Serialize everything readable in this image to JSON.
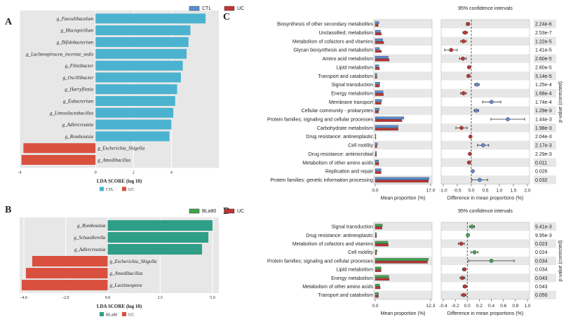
{
  "colors": {
    "ctl": "#4bb3cf",
    "uc": "#d9503f",
    "bla": "#2e9e86",
    "eCtl": "#5b8fd6",
    "eUc": "#c03434",
    "eBla": "#3fa64a",
    "panel": "#e7e7e7"
  },
  "chart_data": [
    {
      "panel": "A",
      "type": "bar",
      "orientation": "horizontal",
      "xlabel": "LDA SCORE (log 10)",
      "xlim": [
        -4,
        6.5
      ],
      "ticks": [
        {
          "v": -4,
          "t": "-4"
        },
        {
          "v": 0,
          "t": "0"
        },
        {
          "v": 2,
          "t": "2"
        },
        {
          "v": 4,
          "t": "4"
        }
      ],
      "legend": [
        {
          "name": "CTL",
          "color": "#4bb3cf"
        },
        {
          "name": "UC",
          "color": "#d9503f"
        }
      ],
      "bars": [
        {
          "label": "g_Faecalibaculum",
          "value": 5.8,
          "group": "CTL"
        },
        {
          "label": "g_Mucispirillum",
          "value": 5.0,
          "group": "CTL"
        },
        {
          "label": "g_Bifidobacterium",
          "value": 4.9,
          "group": "CTL"
        },
        {
          "label": "g_Lachnospiracea_incertae_sedis",
          "value": 4.8,
          "group": "CTL"
        },
        {
          "label": "g_Flintibacter",
          "value": 4.6,
          "group": "CTL"
        },
        {
          "label": "g_Oscillibacter",
          "value": 4.5,
          "group": "CTL"
        },
        {
          "label": "g_Harryflintia",
          "value": 4.3,
          "group": "CTL"
        },
        {
          "label": "g_Eubacterium",
          "value": 4.2,
          "group": "CTL"
        },
        {
          "label": "g_Limosilactobacillus",
          "value": 4.1,
          "group": "CTL"
        },
        {
          "label": "g_Adlercreutzia",
          "value": 4.0,
          "group": "CTL"
        },
        {
          "label": "g_Romboutsia",
          "value": 3.9,
          "group": "CTL"
        },
        {
          "label": "g_Escherichia_Shigella",
          "value": -3.8,
          "group": "UC"
        },
        {
          "label": "g_Amedibacillus",
          "value": -3.9,
          "group": "UC"
        }
      ]
    },
    {
      "panel": "B",
      "type": "bar",
      "orientation": "horizontal",
      "xlabel": "LDA SCORE (log 10)",
      "xlim": [
        -4.2,
        5.3
      ],
      "ticks": [
        {
          "v": -4,
          "t": "-4.0"
        },
        {
          "v": -2,
          "t": "-2.0"
        },
        {
          "v": 0,
          "t": "0.0"
        },
        {
          "v": 2.5,
          "t": "2.5"
        },
        {
          "v": 5,
          "t": "5.0"
        }
      ],
      "legend": [
        {
          "name": "BLa80",
          "color": "#2e9e86"
        },
        {
          "name": "UC",
          "color": "#d9503f"
        }
      ],
      "bars": [
        {
          "label": "g_Romboutsia",
          "value": 5.0,
          "group": "BLa80"
        },
        {
          "label": "g_Schaedlerella",
          "value": 4.8,
          "group": "BLa80"
        },
        {
          "label": "g_Adlercreutzia",
          "value": 4.5,
          "group": "BLa80"
        },
        {
          "label": "g_Escherichia_Shigella",
          "value": -3.6,
          "group": "UC"
        },
        {
          "label": "g_Amedibacillus",
          "value": -3.9,
          "group": "UC"
        },
        {
          "label": "g_Lactimospora",
          "value": -4.1,
          "group": "UC"
        }
      ]
    },
    {
      "panel": "C",
      "type": "extended_error_bar",
      "groups": [
        {
          "name": "CTL",
          "color": "#5b8fd6"
        },
        {
          "name": "UC",
          "color": "#c03434"
        }
      ],
      "prop_axis": {
        "label": "Mean proportion (%)",
        "max": 17,
        "ticks": [
          {
            "v": 0,
            "t": "0.0"
          },
          {
            "v": 17,
            "t": "17.0"
          }
        ]
      },
      "diff_axis": {
        "label": "Difference in mean proportions (%)",
        "min": -1.0,
        "max": 2.0,
        "ticks": [
          {
            "v": -1.0,
            "t": "-1.0"
          },
          {
            "v": -0.5,
            "t": "-0.5"
          },
          {
            "v": 0.0,
            "t": "0.0"
          },
          {
            "v": 0.5,
            "t": "0.5"
          },
          {
            "v": 1.0,
            "t": "1.0"
          },
          {
            "v": 1.5,
            "t": "1.5"
          },
          {
            "v": 2.0,
            "t": "2.0"
          }
        ]
      },
      "ci_title": "95% confidence intervals",
      "pvalue_label": "p-value (corrected)",
      "rows": [
        {
          "label": "Biosynthesis of other secondary metabolites",
          "a": 1.1,
          "b": 0.9,
          "diff": -0.12,
          "lo": -0.18,
          "hi": -0.06,
          "p": "2.24e-6"
        },
        {
          "label": "Unclassified; metabolism",
          "a": 1.6,
          "b": 1.9,
          "diff": -0.22,
          "lo": -0.3,
          "hi": -0.14,
          "p": "2.53e-7"
        },
        {
          "label": "Metabolism of cofactors and vitamins",
          "a": 2.3,
          "b": 2.6,
          "diff": -0.28,
          "lo": -0.38,
          "hi": -0.18,
          "p": "1.22e-5"
        },
        {
          "label": "Glycan biosynthesis and metabolism",
          "a": 1.3,
          "b": 1.9,
          "diff": -0.72,
          "lo": -0.95,
          "hi": -0.5,
          "p": "1.41e-5"
        },
        {
          "label": "Amino acid metabolism",
          "a": 4.0,
          "b": 4.3,
          "diff": -0.3,
          "lo": -0.42,
          "hi": -0.18,
          "p": "2.60e-5"
        },
        {
          "label": "Lipid metabolism",
          "a": 1.1,
          "b": 1.3,
          "diff": -0.08,
          "lo": -0.12,
          "hi": -0.04,
          "p": "2.80e-5"
        },
        {
          "label": "Transport and catabolism",
          "a": 0.5,
          "b": 0.5,
          "diff": -0.1,
          "lo": -0.15,
          "hi": -0.05,
          "p": "3.14e-5"
        },
        {
          "label": "Signal transduction",
          "a": 1.4,
          "b": 1.3,
          "diff": 0.2,
          "lo": 0.12,
          "hi": 0.28,
          "p": "1.25e-4"
        },
        {
          "label": "Energy metabolism",
          "a": 2.4,
          "b": 2.5,
          "diff": -0.28,
          "lo": -0.38,
          "hi": -0.18,
          "p": "1.68e-4"
        },
        {
          "label": "Membrane transport",
          "a": 2.0,
          "b": 1.8,
          "diff": 0.72,
          "lo": 0.4,
          "hi": 1.05,
          "p": "1.74e-4"
        },
        {
          "label": "Cellular community - prokaryotes",
          "a": 1.2,
          "b": 1.0,
          "diff": 0.18,
          "lo": 0.1,
          "hi": 0.26,
          "p": "1.29e-3"
        },
        {
          "label": "Protein families; signaling and cellular processes",
          "a": 8.8,
          "b": 8.2,
          "diff": 1.3,
          "lo": 0.7,
          "hi": 1.9,
          "p": "1.44e-3"
        },
        {
          "label": "Carbohydrate metabolism",
          "a": 7.0,
          "b": 7.0,
          "diff": -0.35,
          "lo": -0.55,
          "hi": -0.15,
          "p": "1.98e-3"
        },
        {
          "label": "Drug resistance: antineoplastic",
          "a": 0.2,
          "b": 0.2,
          "diff": -0.03,
          "lo": -0.05,
          "hi": -0.01,
          "p": "2.04e-3"
        },
        {
          "label": "Cell motility",
          "a": 0.7,
          "b": 0.5,
          "diff": 0.42,
          "lo": 0.22,
          "hi": 0.62,
          "p": "2.17e-3"
        },
        {
          "label": "Drug resistance: antimicrobial",
          "a": 0.4,
          "b": 0.4,
          "diff": -0.05,
          "lo": -0.08,
          "hi": -0.02,
          "p": "2.29e-3"
        },
        {
          "label": "Metabolism of other amino acids",
          "a": 1.0,
          "b": 1.1,
          "diff": -0.08,
          "lo": -0.12,
          "hi": -0.04,
          "p": "0.011"
        },
        {
          "label": "Replication and repair",
          "a": 1.8,
          "b": 1.8,
          "diff": 0.05,
          "lo": 0.01,
          "hi": 0.09,
          "p": "0.026"
        },
        {
          "label": "Protein families: genetic information processing",
          "a": 16.5,
          "b": 16.3,
          "diff": 0.3,
          "lo": 0.02,
          "hi": 0.58,
          "p": "0.032"
        }
      ]
    },
    {
      "panel": "D",
      "type": "extended_error_bar",
      "groups": [
        {
          "name": "BLa80",
          "color": "#3fa64a"
        },
        {
          "name": "UC",
          "color": "#c03434"
        }
      ],
      "prop_axis": {
        "label": "Mean proportion (%)",
        "max": 12.3,
        "ticks": [
          {
            "v": 0,
            "t": "0.0"
          },
          {
            "v": 12.3,
            "t": "12.3"
          }
        ]
      },
      "diff_axis": {
        "label": "Difference in mean proportions (%)",
        "min": -0.4,
        "max": 1.0,
        "ticks": [
          {
            "v": -0.4,
            "t": "-0.4"
          },
          {
            "v": -0.2,
            "t": "-0.2"
          },
          {
            "v": 0.0,
            "t": "0.0"
          },
          {
            "v": 0.2,
            "t": "0.2"
          },
          {
            "v": 0.4,
            "t": "0.4"
          },
          {
            "v": 0.6,
            "t": "0.6"
          },
          {
            "v": 0.8,
            "t": "0.8"
          },
          {
            "v": 1.0,
            "t": "1.0"
          }
        ]
      },
      "ci_title": "95% confidence intervals",
      "pvalue_label": "p-value (corrected)",
      "rows": [
        {
          "label": "Signal transduction",
          "a": 1.6,
          "b": 1.5,
          "diff": 0.08,
          "lo": 0.04,
          "hi": 0.12,
          "p": "9.41e-3"
        },
        {
          "label": "Drug resistance: antineoplastic",
          "a": 0.3,
          "b": 0.3,
          "diff": 0.01,
          "lo": -0.01,
          "hi": 0.03,
          "p": "9.95e-3"
        },
        {
          "label": "Metabolism of cofactors and vitamins",
          "a": 2.8,
          "b": 2.9,
          "diff": -0.1,
          "lo": -0.15,
          "hi": -0.05,
          "p": "0.023"
        },
        {
          "label": "Cell motility",
          "a": 0.4,
          "b": 0.3,
          "diff": 0.12,
          "lo": 0.06,
          "hi": 0.18,
          "p": "0.024"
        },
        {
          "label": "Protein families; signaling and cellular processes",
          "a": 11.8,
          "b": 11.6,
          "diff": 0.4,
          "lo": 0.02,
          "hi": 0.78,
          "p": "0.034"
        },
        {
          "label": "Lipid metabolism",
          "a": 1.3,
          "b": 1.3,
          "diff": -0.05,
          "lo": -0.08,
          "hi": -0.02,
          "p": "0.034"
        },
        {
          "label": "Energy metabolism",
          "a": 3.0,
          "b": 3.1,
          "diff": -0.08,
          "lo": -0.12,
          "hi": -0.04,
          "p": "0.043"
        },
        {
          "label": "Metabolism of other amino acids",
          "a": 1.0,
          "b": 1.1,
          "diff": -0.04,
          "lo": -0.07,
          "hi": -0.01,
          "p": "0.043"
        },
        {
          "label": "Transport and catabolism",
          "a": 0.7,
          "b": 0.7,
          "diff": -0.06,
          "lo": -0.1,
          "hi": -0.02,
          "p": "0.050"
        }
      ]
    }
  ]
}
